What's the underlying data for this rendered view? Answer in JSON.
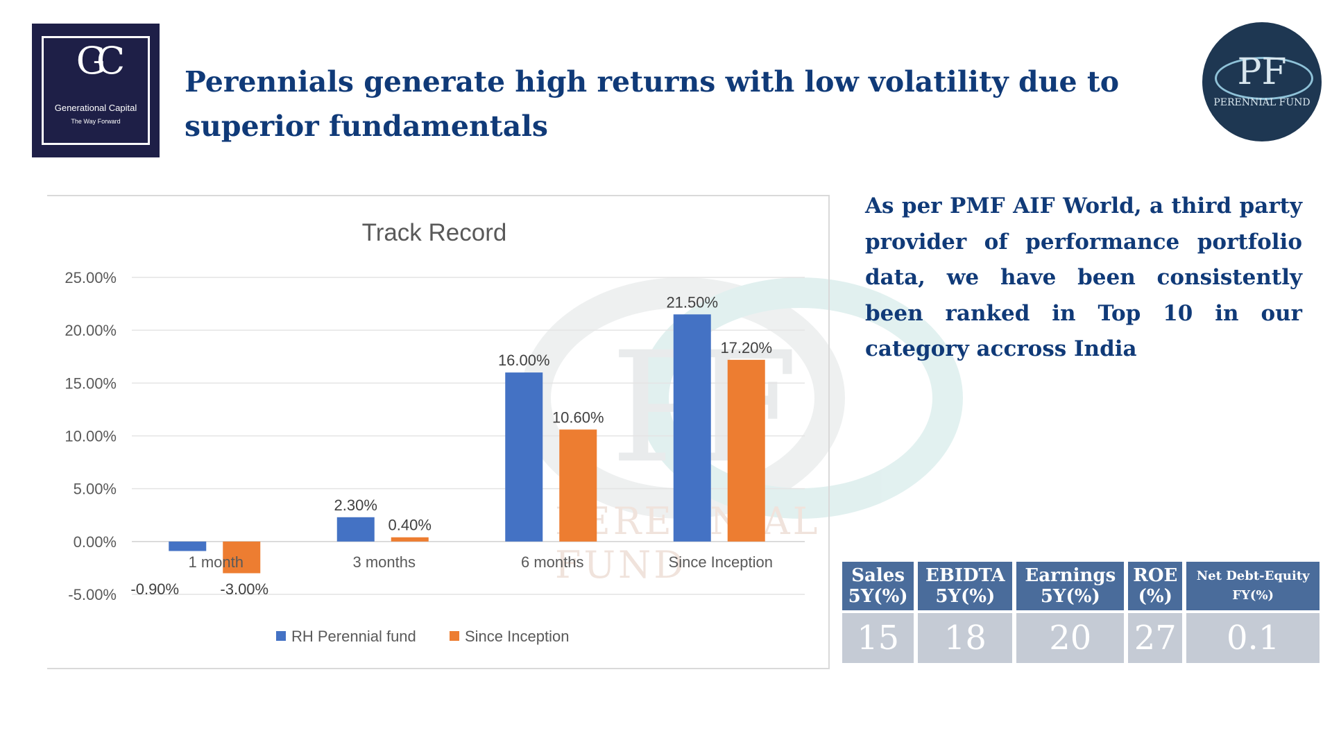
{
  "logo_left": {
    "mark": "GC",
    "name": "Generational Capital",
    "tagline": "The Way Forward"
  },
  "title": "Perennials generate high returns with low volatility due to superior fundamentals",
  "logo_right": {
    "mark": "PF",
    "name": "PERENNIAL FUND"
  },
  "watermark": {
    "mark": "PF",
    "name": "PERENNIAL FUND"
  },
  "side_text": "As per PMF AIF World, a third party provider of performance portfolio data, we have been consistently been ranked in Top 10 in our category accross India",
  "metrics": {
    "headers": [
      {
        "line1": "Sales",
        "line2": "5Y(%)"
      },
      {
        "line1": "EBIDTA",
        "line2": "5Y(%)"
      },
      {
        "line1": "Earnings",
        "line2": "5Y(%)"
      },
      {
        "line1": "ROE",
        "line2": "(%)"
      },
      {
        "line1": "Net Debt-Equity",
        "line2": "FY(%)"
      }
    ],
    "values": [
      "15",
      "18",
      "20",
      "27",
      "0.1"
    ]
  },
  "chart_data": {
    "type": "bar",
    "title": "Track Record",
    "categories": [
      "1 month",
      "3 months",
      "6 months",
      "Since Inception"
    ],
    "series": [
      {
        "name": "RH Perennial fund",
        "values": [
          -0.9,
          2.3,
          16.0,
          21.5
        ],
        "labels": [
          "-0.90%",
          "2.30%",
          "16.00%",
          "21.50%"
        ],
        "color": "#4472c4"
      },
      {
        "name": "Since Inception",
        "values": [
          -3.0,
          0.4,
          10.6,
          17.2
        ],
        "labels": [
          "-3.00%",
          "0.40%",
          "10.60%",
          "17.20%"
        ],
        "color": "#ed7d31"
      }
    ],
    "ylim": [
      -5,
      25
    ],
    "y_ticks": [
      25,
      20,
      15,
      10,
      5,
      0,
      -5
    ],
    "y_tick_labels": [
      "25.00%",
      "20.00%",
      "15.00%",
      "10.00%",
      "5.00%",
      "0.00%",
      "-5.00%"
    ],
    "grid": true,
    "legend": "bottom"
  }
}
